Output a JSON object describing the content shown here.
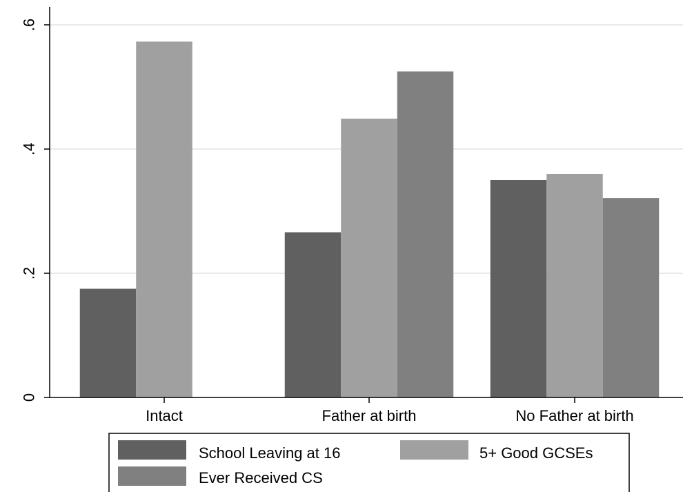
{
  "chart_data": {
    "type": "bar",
    "categories": [
      "Intact",
      "Father at birth",
      "No Father at birth"
    ],
    "series": [
      {
        "name": "School Leaving at 16",
        "values": [
          0.175,
          0.266,
          0.35
        ],
        "color": "#606060"
      },
      {
        "name": "5+ Good GCSEs",
        "values": [
          0.573,
          0.449,
          0.36
        ],
        "color": "#a0a0a0"
      },
      {
        "name": "Ever Received CS",
        "values": [
          null,
          0.525,
          0.321
        ],
        "color": "#808080"
      }
    ],
    "title": "",
    "xlabel": "",
    "ylabel": "",
    "ylim": [
      0,
      0.6
    ],
    "yticks": [
      {
        "value": 0,
        "label": "0"
      },
      {
        "value": 0.2,
        "label": ".2"
      },
      {
        "value": 0.4,
        "label": ".4"
      },
      {
        "value": 0.6,
        "label": ".6"
      }
    ],
    "grid": true,
    "legend_position": "bottom"
  }
}
